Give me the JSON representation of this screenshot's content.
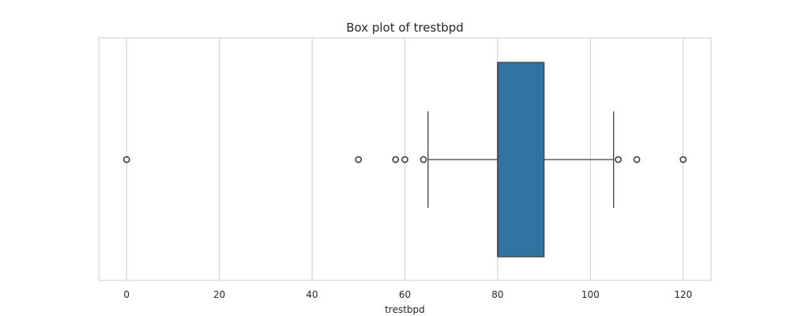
{
  "chart_data": {
    "type": "box",
    "title": "Box plot of trestbpd",
    "xlabel": "trestbpd",
    "ylabel": "",
    "xlim": [
      -6,
      126
    ],
    "xticks": [
      0,
      20,
      40,
      60,
      80,
      100,
      120
    ],
    "xtick_labels": [
      "0",
      "20",
      "40",
      "60",
      "80",
      "100",
      "120"
    ],
    "grid": true,
    "orientation": "horizontal",
    "box": {
      "q1": 80,
      "median": 80,
      "q3": 90,
      "whisker_low": 65,
      "whisker_high": 105
    },
    "outliers": [
      0,
      50,
      58,
      60,
      64,
      106,
      110,
      120
    ],
    "box_color": "#3274a1",
    "line_color": "#3f3f3f",
    "grid_color": "#cccccc",
    "spine_color": "#cccccc"
  }
}
